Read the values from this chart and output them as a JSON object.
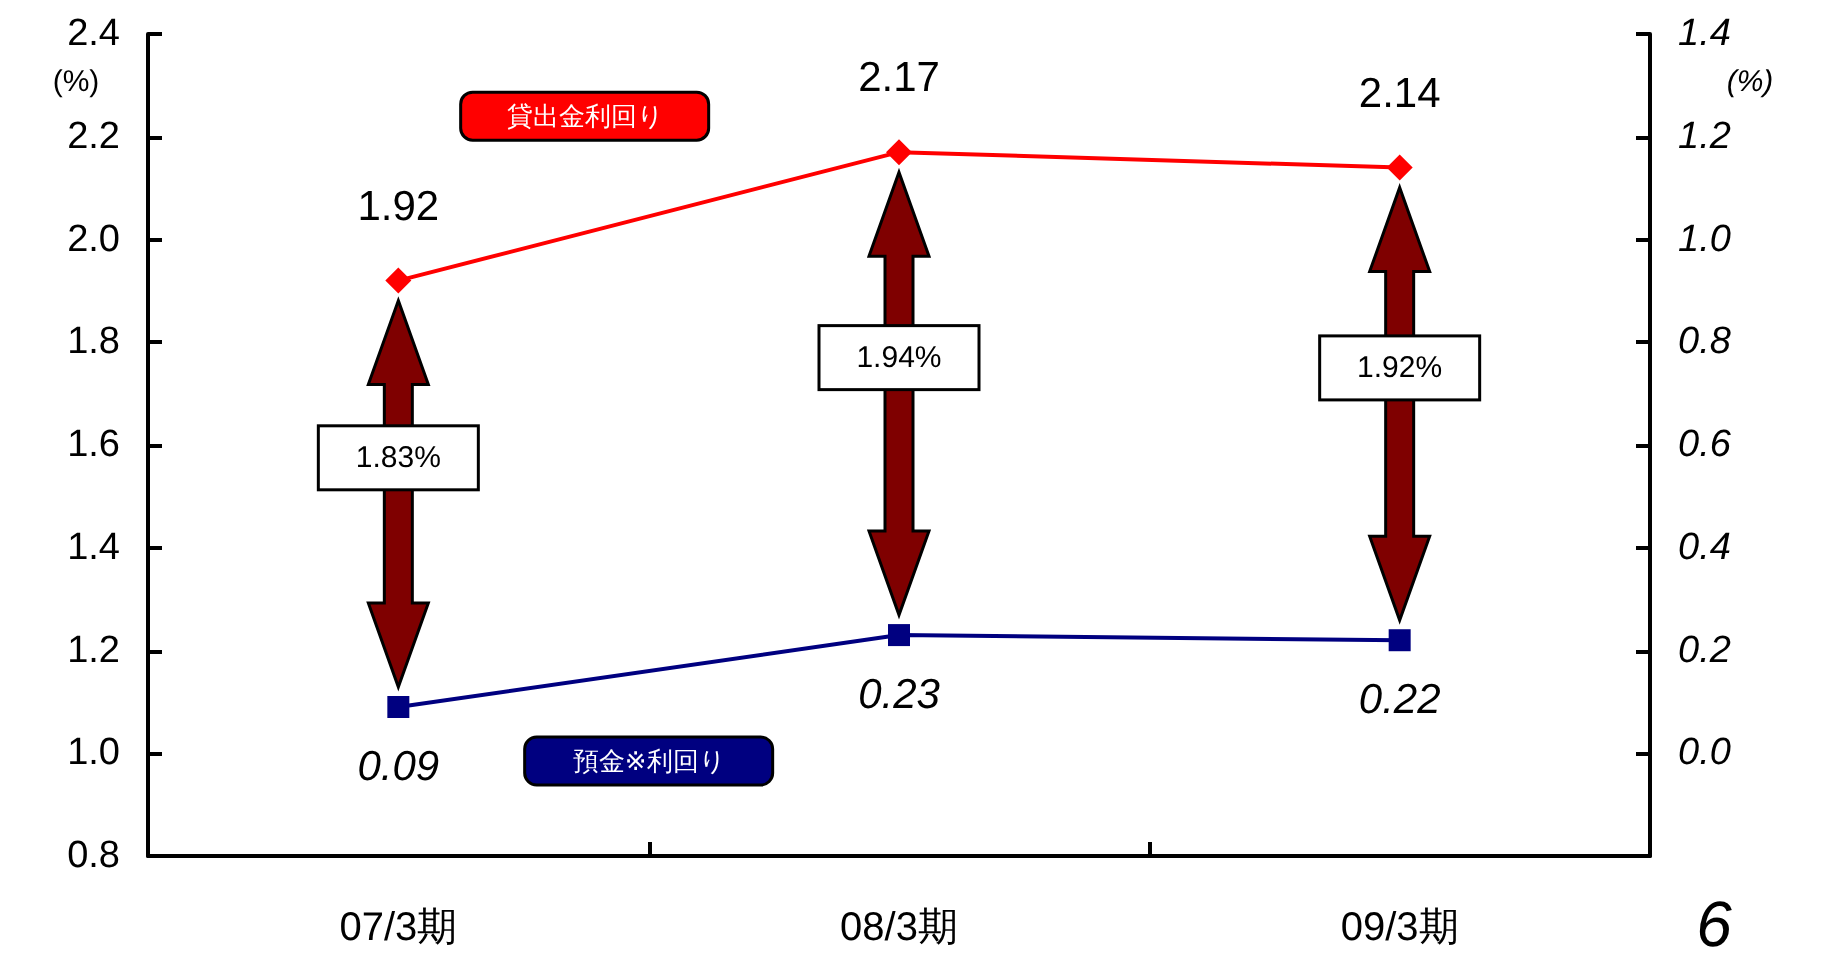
{
  "chart_data": {
    "type": "line",
    "categories": [
      "07/3期",
      "08/3期",
      "09/3期"
    ],
    "ylabel": "(%)",
    "y2label": "(%)",
    "ylim": [
      0.8,
      2.4
    ],
    "yticks": [
      0.8,
      {
        "value": 1.0,
        "label": "1.0"
      },
      1.2,
      1.4,
      1.6,
      1.8,
      {
        "value": 2.0,
        "label": "2.0"
      },
      2.2,
      2.4
    ],
    "y2lim": [
      -0.2,
      1.4
    ],
    "y2ticks": [
      {
        "value": 0.0,
        "label": "0.0"
      },
      0.2,
      0.4,
      0.6,
      0.8,
      {
        "value": 1.0,
        "label": "1.0"
      },
      1.2,
      1.4
    ],
    "series": [
      {
        "name": "貸出金利回り",
        "color": "#ff0000",
        "marker": "diamond",
        "values": [
          1.92,
          2.17,
          2.14
        ]
      },
      {
        "name": "預金※利回り",
        "color": "#000080",
        "marker": "square",
        "axis": "y2",
        "values": [
          0.09,
          0.23,
          0.22
        ]
      }
    ],
    "data_labels": true,
    "grid": false,
    "legend": false,
    "annotations": [
      "1.83%",
      "1.94%",
      "1.92%",
      "6"
    ]
  }
}
